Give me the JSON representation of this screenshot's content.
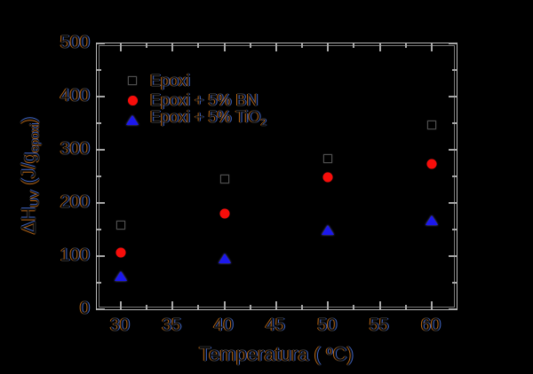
{
  "colors": {
    "background": "#000000",
    "frame": "#b6b6b6",
    "frame_inner": "#787878",
    "tick": "#a8a8a8",
    "text_fringe_left": "#d67514",
    "text_fringe_right": "#4876e8"
  },
  "axes": {
    "x_title_pre": "Temperatura ( ",
    "x_title_sup": "o",
    "x_title_post": "C)",
    "y_title_pre": "ΔH",
    "y_title_sub": "UV",
    "y_title_mid": " (J/g",
    "y_title_sub2": "epoxi",
    "y_title_post": ")"
  },
  "legend": {
    "items": [
      {
        "label": "Epoxi"
      },
      {
        "label": "Epoxi + 5% BN"
      },
      {
        "label_pre": "Epoxi + 5% TiO",
        "label_sub": "2"
      }
    ]
  },
  "chart_data": {
    "type": "scatter",
    "title": "",
    "xlabel": "Temperatura (°C)",
    "ylabel": "ΔH_UV (J/g_epoxi)",
    "xlim": [
      27.7,
      62.4
    ],
    "ylim": [
      0,
      500
    ],
    "grid": false,
    "legend_position": "upper left inside",
    "x_major_ticks": [
      30,
      35,
      40,
      45,
      50,
      55,
      60
    ],
    "x_minor_ticks": [
      32.5,
      37.5,
      42.5,
      47.5,
      52.5,
      57.5
    ],
    "y_major_ticks": [
      0,
      100,
      200,
      300,
      400,
      500
    ],
    "y_minor_ticks": [
      50,
      150,
      250,
      350,
      450
    ],
    "x": [
      30,
      40,
      50,
      60
    ],
    "series": [
      {
        "name": "Epoxi",
        "marker": "square",
        "color": "#000000",
        "edge_color": "#4f4f4f",
        "values": [
          158,
          245,
          283,
          347
        ]
      },
      {
        "name": "Epoxi + 5% BN",
        "marker": "circle",
        "color": "#f80d0a",
        "values": [
          107,
          180,
          249,
          273
        ]
      },
      {
        "name": "Epoxi + 5% TiO2",
        "marker": "triangle",
        "color": "#1c18ee",
        "values": [
          62,
          95,
          149,
          167
        ]
      }
    ]
  }
}
